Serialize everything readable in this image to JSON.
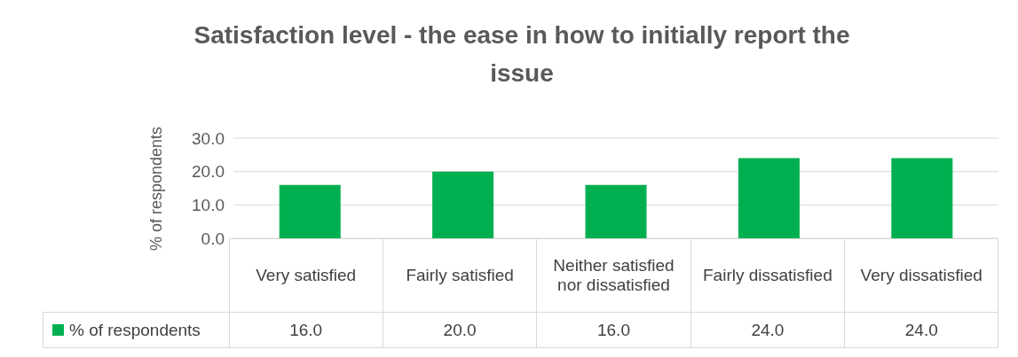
{
  "chart_data": {
    "type": "bar",
    "title": "Satisfaction level - the ease in how to initially report the issue",
    "ylabel": "% of respondents",
    "categories": [
      "Very satisfied",
      "Fairly satisfied",
      "Neither satisfied nor dissatisfied",
      "Fairly dissatisfied",
      "Very dissatisfied"
    ],
    "series": [
      {
        "name": "% of respondents",
        "color": "#00b050",
        "values": [
          16,
          20,
          16,
          24,
          24
        ],
        "value_labels": [
          "16.0",
          "20.0",
          "16.0",
          "24.0",
          "24.0"
        ]
      }
    ],
    "ylim": [
      0,
      30
    ],
    "yticks": [
      {
        "value": 0,
        "label": "0.0"
      },
      {
        "value": 10,
        "label": "10.0"
      },
      {
        "value": 20,
        "label": "20.0"
      },
      {
        "value": 30,
        "label": "30.0"
      }
    ],
    "grid": "y",
    "legend": "bottom"
  }
}
